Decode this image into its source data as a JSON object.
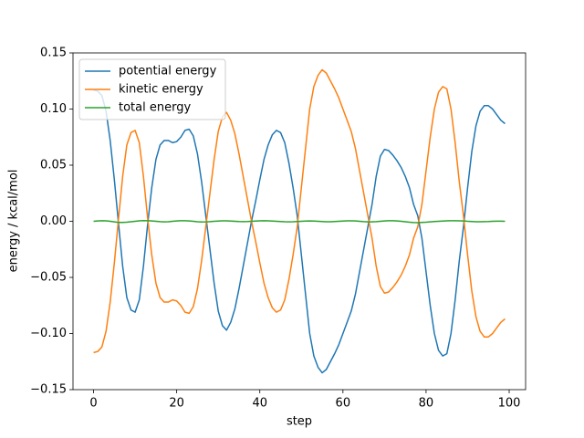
{
  "chart_data": {
    "type": "line",
    "xlabel": "step",
    "ylabel": "energy / kcal/mol",
    "xlim": [
      -4.95,
      103.95
    ],
    "ylim": [
      -0.15,
      0.15
    ],
    "xticks": [
      0,
      20,
      40,
      60,
      80,
      100
    ],
    "yticks": [
      {
        "value": -0.15,
        "label": "−0.15"
      },
      {
        "value": -0.1,
        "label": "−0.10"
      },
      {
        "value": -0.05,
        "label": "−0.05"
      },
      {
        "value": 0,
        "label": "0.00"
      },
      0.05,
      {
        "value": 0.1,
        "label": "0.10"
      },
      0.15
    ],
    "legend": "upper left",
    "x": [
      0,
      1,
      2,
      3,
      4,
      5,
      6,
      7,
      8,
      9,
      10,
      11,
      12,
      13,
      14,
      15,
      16,
      17,
      18,
      19,
      20,
      21,
      22,
      23,
      24,
      25,
      26,
      27,
      28,
      29,
      30,
      31,
      32,
      33,
      34,
      35,
      36,
      37,
      38,
      39,
      40,
      41,
      42,
      43,
      44,
      45,
      46,
      47,
      48,
      49,
      50,
      51,
      52,
      53,
      54,
      55,
      56,
      57,
      58,
      59,
      60,
      61,
      62,
      63,
      64,
      65,
      66,
      67,
      68,
      69,
      70,
      71,
      72,
      73,
      74,
      75,
      76,
      77,
      78,
      79,
      80,
      81,
      82,
      83,
      84,
      85,
      86,
      87,
      88,
      89,
      90,
      91,
      92,
      93,
      94,
      95,
      96,
      97,
      98,
      99
    ],
    "series": [
      {
        "name": "potential energy",
        "color": "#1f77b4",
        "values": [
          0.117,
          0.116,
          0.112,
          0.098,
          0.072,
          0.037,
          -0.002,
          -0.04,
          -0.068,
          -0.079,
          -0.081,
          -0.07,
          -0.04,
          -0.003,
          0.03,
          0.055,
          0.068,
          0.072,
          0.072,
          0.07,
          0.071,
          0.075,
          0.081,
          0.082,
          0.076,
          0.06,
          0.035,
          0.005,
          -0.025,
          -0.055,
          -0.08,
          -0.093,
          -0.097,
          -0.09,
          -0.078,
          -0.06,
          -0.04,
          -0.02,
          0.0,
          0.018,
          0.037,
          0.055,
          0.068,
          0.077,
          0.081,
          0.079,
          0.07,
          0.052,
          0.03,
          0.005,
          -0.03,
          -0.065,
          -0.1,
          -0.12,
          -0.13,
          -0.135,
          -0.132,
          -0.125,
          -0.118,
          -0.11,
          -0.1,
          -0.09,
          -0.08,
          -0.065,
          -0.045,
          -0.025,
          -0.005,
          0.015,
          0.04,
          0.058,
          0.064,
          0.063,
          0.059,
          0.054,
          0.048,
          0.04,
          0.03,
          0.015,
          0.005,
          -0.015,
          -0.045,
          -0.075,
          -0.1,
          -0.115,
          -0.12,
          -0.118,
          -0.1,
          -0.07,
          -0.035,
          -0.005,
          0.03,
          0.062,
          0.085,
          0.098,
          0.103,
          0.103,
          0.1,
          0.095,
          0.09,
          0.087
        ]
      },
      {
        "name": "kinetic energy",
        "color": "#ff7f0e",
        "values": [
          -0.117,
          -0.116,
          -0.112,
          -0.098,
          -0.072,
          -0.037,
          0.002,
          0.04,
          0.068,
          0.079,
          0.081,
          0.07,
          0.04,
          0.003,
          -0.03,
          -0.055,
          -0.068,
          -0.072,
          -0.072,
          -0.07,
          -0.071,
          -0.075,
          -0.081,
          -0.082,
          -0.076,
          -0.06,
          -0.035,
          -0.005,
          0.025,
          0.055,
          0.08,
          0.093,
          0.097,
          0.09,
          0.078,
          0.06,
          0.04,
          0.02,
          0.0,
          -0.018,
          -0.037,
          -0.055,
          -0.068,
          -0.077,
          -0.081,
          -0.079,
          -0.07,
          -0.052,
          -0.03,
          -0.005,
          0.03,
          0.065,
          0.1,
          0.12,
          0.13,
          0.135,
          0.132,
          0.125,
          0.118,
          0.11,
          0.1,
          0.09,
          0.08,
          0.065,
          0.045,
          0.025,
          0.005,
          -0.015,
          -0.04,
          -0.058,
          -0.064,
          -0.063,
          -0.059,
          -0.054,
          -0.048,
          -0.04,
          -0.03,
          -0.015,
          -0.005,
          0.015,
          0.045,
          0.075,
          0.1,
          0.115,
          0.12,
          0.118,
          0.1,
          0.07,
          0.035,
          0.005,
          -0.03,
          -0.062,
          -0.085,
          -0.098,
          -0.103,
          -0.103,
          -0.1,
          -0.095,
          -0.09,
          -0.087
        ]
      },
      {
        "name": "total energy",
        "color": "#2ca02c",
        "values": [
          0.0,
          0.0003,
          0.0005,
          0.0004,
          0.0,
          -0.0005,
          -0.001,
          -0.001,
          -0.0008,
          -0.0004,
          0.0,
          0.0004,
          0.0006,
          0.0005,
          0.0003,
          0.0,
          -0.0003,
          -0.0005,
          -0.0004,
          0.0,
          0.0003,
          0.0005,
          0.0005,
          0.0003,
          0.0,
          -0.0004,
          -0.0006,
          -0.0005,
          -0.0003,
          0.0,
          0.0002,
          0.0004,
          0.0004,
          0.0002,
          0.0,
          -0.0002,
          -0.0003,
          -0.0002,
          0.0,
          0.0002,
          0.0004,
          0.0005,
          0.0004,
          0.0002,
          0.0,
          -0.0002,
          -0.0004,
          -0.0005,
          -0.0004,
          -0.0002,
          0.0,
          0.0002,
          0.0003,
          0.0002,
          0.0,
          -0.0002,
          -0.0004,
          -0.0004,
          -0.0002,
          0.0,
          0.0002,
          0.0004,
          0.0004,
          0.0003,
          0.0,
          -0.0003,
          -0.0005,
          -0.0005,
          -0.0003,
          0.0,
          0.0003,
          0.0005,
          0.0005,
          0.0003,
          0.0,
          -0.0004,
          -0.0008,
          -0.0011,
          -0.0012,
          -0.001,
          -0.0008,
          -0.0005,
          -0.0002,
          0.0,
          0.0002,
          0.0004,
          0.0005,
          0.0005,
          0.0004,
          0.0003,
          0.0,
          -0.0002,
          -0.0004,
          -0.0004,
          -0.0003,
          -0.0002,
          0.0,
          0.0001,
          0.0001,
          0.0
        ]
      }
    ]
  }
}
